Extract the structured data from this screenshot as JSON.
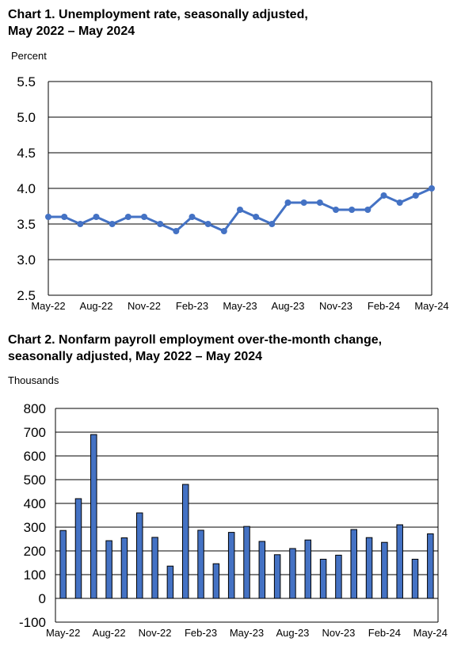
{
  "chart_data": [
    {
      "type": "line",
      "title": "Chart 1. Unemployment rate, seasonally adjusted,",
      "subtitle": "May 2022 – May 2024",
      "ylabel": "Percent",
      "xlabel": "",
      "ylim": [
        2.5,
        5.5
      ],
      "yticks": [
        "5.5",
        "5.0",
        "4.5",
        "4.0",
        "3.5",
        "3.0",
        "2.5"
      ],
      "xtick_labels": [
        "May-22",
        "Aug-22",
        "Nov-22",
        "Feb-23",
        "May-23",
        "Aug-23",
        "Nov-23",
        "Feb-24",
        "May-24"
      ],
      "x": [
        "May-22",
        "Jun-22",
        "Jul-22",
        "Aug-22",
        "Sep-22",
        "Oct-22",
        "Nov-22",
        "Dec-22",
        "Jan-23",
        "Feb-23",
        "Mar-23",
        "Apr-23",
        "May-23",
        "Jun-23",
        "Jul-23",
        "Aug-23",
        "Sep-23",
        "Oct-23",
        "Nov-23",
        "Dec-23",
        "Jan-24",
        "Feb-24",
        "Mar-24",
        "Apr-24",
        "May-24"
      ],
      "values": [
        3.6,
        3.6,
        3.5,
        3.6,
        3.5,
        3.6,
        3.6,
        3.5,
        3.4,
        3.6,
        3.5,
        3.4,
        3.7,
        3.6,
        3.5,
        3.8,
        3.8,
        3.8,
        3.7,
        3.7,
        3.7,
        3.9,
        3.8,
        3.9,
        4.0
      ],
      "grid": true,
      "color": "#4472C4"
    },
    {
      "type": "bar",
      "title": "Chart 2. Nonfarm payroll employment over-the-month change,",
      "subtitle": "seasonally adjusted, May 2022 – May 2024",
      "ylabel": "Thousands",
      "xlabel": "",
      "ylim": [
        -100,
        800
      ],
      "yticks": [
        "800",
        "700",
        "600",
        "500",
        "400",
        "300",
        "200",
        "100",
        "0",
        "-100"
      ],
      "xtick_labels": [
        "May-22",
        "Aug-22",
        "Nov-22",
        "Feb-23",
        "May-23",
        "Aug-23",
        "Nov-23",
        "Feb-24",
        "May-24"
      ],
      "categories": [
        "May-22",
        "Jun-22",
        "Jul-22",
        "Aug-22",
        "Sep-22",
        "Oct-22",
        "Nov-22",
        "Dec-22",
        "Jan-23",
        "Feb-23",
        "Mar-23",
        "Apr-23",
        "May-23",
        "Jun-23",
        "Jul-23",
        "Aug-23",
        "Sep-23",
        "Oct-23",
        "Nov-23",
        "Dec-23",
        "Jan-24",
        "Feb-24",
        "Mar-24",
        "Apr-24",
        "May-24"
      ],
      "values": [
        286,
        420,
        690,
        243,
        255,
        360,
        257,
        136,
        480,
        287,
        146,
        278,
        303,
        240,
        184,
        210,
        246,
        165,
        182,
        290,
        256,
        236,
        310,
        165,
        272
      ],
      "grid": true,
      "color": "#4472C4"
    }
  ]
}
